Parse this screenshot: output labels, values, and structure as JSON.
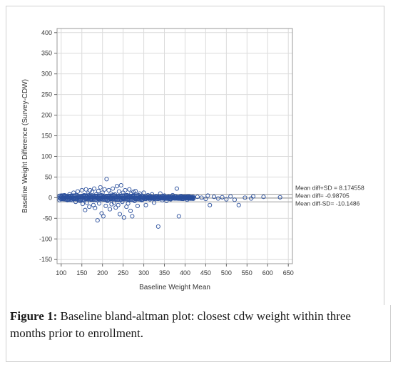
{
  "caption": {
    "label": "Figure 1:",
    "text": "Baseline bland-altman plot: closest cdw weight within three months prior to enrollment."
  },
  "chart_data": {
    "type": "scatter",
    "title": "",
    "xlabel": "Baseline Weight Mean",
    "ylabel": "Baseline Weight Difference (Survey-CDW)",
    "xlim": [
      90,
      660
    ],
    "ylim": [
      -160,
      410
    ],
    "x_ticks": [
      "100",
      "150",
      "200",
      "250",
      "300",
      "350",
      "400",
      "450",
      "500",
      "550",
      "600",
      "650"
    ],
    "y_ticks": [
      "400",
      "350",
      "300",
      "250",
      "200",
      "150",
      "100",
      "50",
      "0",
      "-50",
      "-100",
      "-150"
    ],
    "grid": true,
    "marker": "open-circle",
    "colors": {
      "points": "#2a4f9c",
      "reference_lines": "#9a9a9a",
      "grid": "#dcdcdc"
    },
    "reference_lines": [
      {
        "label": "Mean diff+SD = 8.174558",
        "y": 8.174558
      },
      {
        "label": "Mean diff= -0.98705",
        "y": -0.98705
      },
      {
        "label": "Mean diff-SD= -10.1486",
        "y": -10.1486
      }
    ],
    "series": [
      {
        "values": [
          {
            "x": 100,
            "y": 2
          },
          {
            "x": 105,
            "y": -3
          },
          {
            "x": 110,
            "y": 5
          },
          {
            "x": 115,
            "y": -6
          },
          {
            "x": 120,
            "y": 8
          },
          {
            "x": 125,
            "y": -2
          },
          {
            "x": 130,
            "y": 12
          },
          {
            "x": 135,
            "y": -10
          },
          {
            "x": 140,
            "y": 15
          },
          {
            "x": 145,
            "y": -8
          },
          {
            "x": 150,
            "y": 18
          },
          {
            "x": 152,
            "y": -15
          },
          {
            "x": 155,
            "y": 6
          },
          {
            "x": 158,
            "y": -30
          },
          {
            "x": 160,
            "y": 20
          },
          {
            "x": 162,
            "y": -12
          },
          {
            "x": 165,
            "y": 10
          },
          {
            "x": 168,
            "y": -22
          },
          {
            "x": 170,
            "y": 18
          },
          {
            "x": 172,
            "y": -5
          },
          {
            "x": 175,
            "y": 14
          },
          {
            "x": 178,
            "y": -18
          },
          {
            "x": 180,
            "y": 22
          },
          {
            "x": 182,
            "y": -25
          },
          {
            "x": 185,
            "y": 8
          },
          {
            "x": 188,
            "y": -55
          },
          {
            "x": 190,
            "y": 16
          },
          {
            "x": 192,
            "y": -14
          },
          {
            "x": 195,
            "y": 25
          },
          {
            "x": 198,
            "y": -38
          },
          {
            "x": 200,
            "y": 12
          },
          {
            "x": 202,
            "y": -45
          },
          {
            "x": 205,
            "y": 20
          },
          {
            "x": 208,
            "y": -20
          },
          {
            "x": 210,
            "y": 45
          },
          {
            "x": 212,
            "y": -8
          },
          {
            "x": 215,
            "y": 18
          },
          {
            "x": 218,
            "y": -28
          },
          {
            "x": 220,
            "y": 10
          },
          {
            "x": 222,
            "y": -16
          },
          {
            "x": 225,
            "y": 22
          },
          {
            "x": 228,
            "y": -12
          },
          {
            "x": 230,
            "y": 8
          },
          {
            "x": 232,
            "y": -24
          },
          {
            "x": 235,
            "y": 28
          },
          {
            "x": 238,
            "y": -18
          },
          {
            "x": 240,
            "y": 15
          },
          {
            "x": 242,
            "y": -40
          },
          {
            "x": 245,
            "y": 30
          },
          {
            "x": 248,
            "y": -10
          },
          {
            "x": 250,
            "y": 12
          },
          {
            "x": 252,
            "y": -48
          },
          {
            "x": 255,
            "y": 18
          },
          {
            "x": 258,
            "y": -22
          },
          {
            "x": 260,
            "y": 6
          },
          {
            "x": 262,
            "y": -14
          },
          {
            "x": 265,
            "y": 20
          },
          {
            "x": 268,
            "y": -32
          },
          {
            "x": 270,
            "y": 10
          },
          {
            "x": 272,
            "y": -45
          },
          {
            "x": 275,
            "y": 14
          },
          {
            "x": 278,
            "y": -8
          },
          {
            "x": 280,
            "y": 16
          },
          {
            "x": 285,
            "y": -20
          },
          {
            "x": 290,
            "y": 10
          },
          {
            "x": 295,
            "y": -6
          },
          {
            "x": 300,
            "y": 12
          },
          {
            "x": 305,
            "y": -18
          },
          {
            "x": 310,
            "y": 6
          },
          {
            "x": 315,
            "y": -4
          },
          {
            "x": 320,
            "y": 8
          },
          {
            "x": 325,
            "y": -12
          },
          {
            "x": 330,
            "y": 4
          },
          {
            "x": 335,
            "y": -70
          },
          {
            "x": 340,
            "y": 10
          },
          {
            "x": 345,
            "y": -6
          },
          {
            "x": 350,
            "y": 5
          },
          {
            "x": 355,
            "y": -8
          },
          {
            "x": 360,
            "y": 3
          },
          {
            "x": 365,
            "y": -4
          },
          {
            "x": 370,
            "y": 6
          },
          {
            "x": 375,
            "y": -2
          },
          {
            "x": 380,
            "y": 22
          },
          {
            "x": 385,
            "y": -45
          },
          {
            "x": 390,
            "y": 4
          },
          {
            "x": 395,
            "y": -3
          },
          {
            "x": 400,
            "y": 2
          },
          {
            "x": 405,
            "y": -5
          },
          {
            "x": 410,
            "y": 3
          },
          {
            "x": 415,
            "y": 1
          },
          {
            "x": 420,
            "y": -2
          },
          {
            "x": 430,
            "y": 2
          },
          {
            "x": 440,
            "y": 0
          },
          {
            "x": 450,
            "y": -3
          },
          {
            "x": 455,
            "y": 5
          },
          {
            "x": 460,
            "y": -18
          },
          {
            "x": 470,
            "y": 2
          },
          {
            "x": 480,
            "y": -2
          },
          {
            "x": 490,
            "y": 1
          },
          {
            "x": 500,
            "y": -4
          },
          {
            "x": 510,
            "y": 3
          },
          {
            "x": 520,
            "y": -5
          },
          {
            "x": 530,
            "y": -18
          },
          {
            "x": 545,
            "y": 0
          },
          {
            "x": 560,
            "y": -2
          },
          {
            "x": 565,
            "y": 3
          },
          {
            "x": 590,
            "y": 2
          },
          {
            "x": 630,
            "y": 1
          }
        ]
      }
    ]
  }
}
